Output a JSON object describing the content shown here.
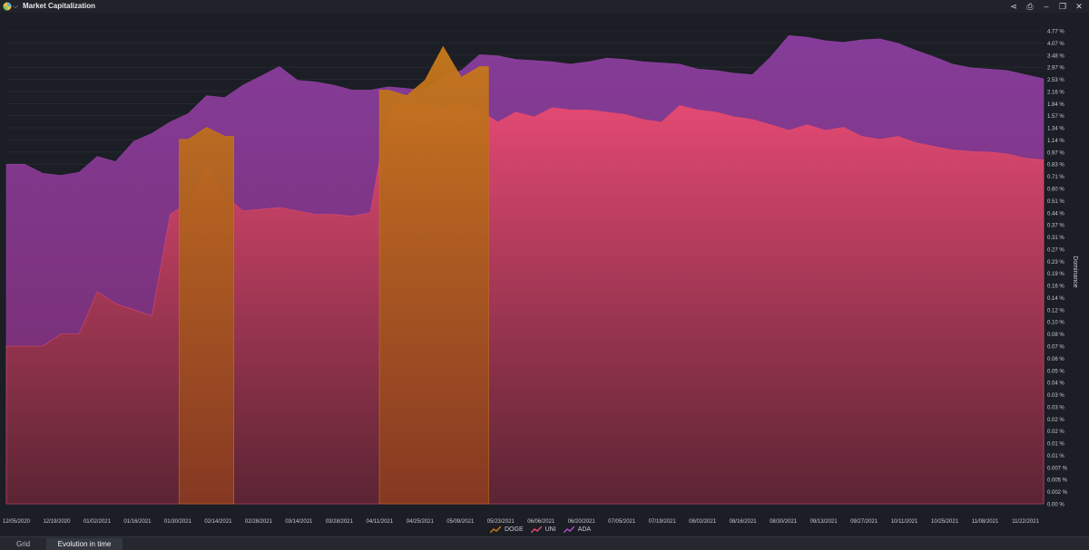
{
  "window": {
    "title": "Market Capitalization",
    "controls": [
      "share-icon",
      "export-icon",
      "minimize-icon",
      "restore-icon",
      "close-icon"
    ]
  },
  "tabs": [
    {
      "label": "Grid",
      "active": false
    },
    {
      "label": "Evolution in time",
      "active": true
    }
  ],
  "chart_data": {
    "type": "area",
    "title": "",
    "xlabel": "",
    "ylabel": "Dominance",
    "y_scale": "nonlinear",
    "y_ticks": [
      "4.77 %",
      "4.07 %",
      "3.48 %",
      "2.97 %",
      "2.53 %",
      "2.16 %",
      "1.84 %",
      "1.57 %",
      "1.34 %",
      "1.14 %",
      "0.97 %",
      "0.83 %",
      "0.71 %",
      "0.60 %",
      "0.51 %",
      "0.44 %",
      "0.37 %",
      "0.31 %",
      "0.27 %",
      "0.23 %",
      "0.19 %",
      "0.16 %",
      "0.14 %",
      "0.12 %",
      "0.10 %",
      "0.08 %",
      "0.07 %",
      "0.06 %",
      "0.05 %",
      "0.04 %",
      "0.03 %",
      "0.03 %",
      "0.02 %",
      "0.02 %",
      "0.01 %",
      "0.01 %",
      "0.007 %",
      "0.005 %",
      "0.002 %",
      "0.00 %"
    ],
    "x_ticks": [
      "12/05/2020",
      "12/19/2020",
      "01/02/2021",
      "01/16/2021",
      "01/30/2021",
      "02/14/2021",
      "02/28/2021",
      "03/14/2021",
      "03/28/2021",
      "04/11/2021",
      "04/25/2021",
      "05/09/2021",
      "05/23/2021",
      "06/06/2021",
      "06/20/2021",
      "07/05/2021",
      "07/19/2021",
      "08/02/2021",
      "08/16/2021",
      "08/30/2021",
      "09/13/2021",
      "09/27/2021",
      "10/11/2021",
      "10/25/2021",
      "11/08/2021",
      "11/22/2021"
    ],
    "legend_position": "bottom-center",
    "series": [
      {
        "name": "ADA",
        "color": "#8e3f9e",
        "values": [
          0.83,
          0.83,
          0.74,
          0.72,
          0.75,
          0.92,
          0.86,
          1.12,
          1.25,
          1.45,
          1.62,
          2.05,
          2.0,
          2.35,
          2.65,
          3.0,
          2.5,
          2.45,
          2.35,
          2.2,
          2.2,
          2.3,
          2.25,
          2.2,
          2.6,
          2.85,
          3.5,
          3.45,
          3.3,
          3.25,
          3.2,
          3.1,
          3.2,
          3.35,
          3.3,
          3.2,
          3.15,
          3.1,
          2.9,
          2.85,
          2.75,
          2.7,
          3.4,
          4.5,
          4.4,
          4.2,
          4.1,
          4.25,
          4.3,
          4.05,
          3.7,
          3.4,
          3.1,
          2.95,
          2.9,
          2.85,
          2.7,
          2.55
        ]
      },
      {
        "name": "UNI",
        "color": "#e0476d",
        "values": [
          0.07,
          0.07,
          0.07,
          0.08,
          0.08,
          0.15,
          0.13,
          0.12,
          0.11,
          0.43,
          0.5,
          0.8,
          0.55,
          0.45,
          0.46,
          0.47,
          0.45,
          0.43,
          0.43,
          0.42,
          0.44,
          1.7,
          1.9,
          1.8,
          1.75,
          1.85,
          1.7,
          1.45,
          1.65,
          1.55,
          1.75,
          1.7,
          1.7,
          1.65,
          1.6,
          1.5,
          1.45,
          1.8,
          1.7,
          1.65,
          1.55,
          1.5,
          1.4,
          1.3,
          1.4,
          1.3,
          1.35,
          1.2,
          1.15,
          1.2,
          1.1,
          1.05,
          1.0,
          0.98,
          0.97,
          0.95,
          0.9,
          0.88
        ]
      },
      {
        "name": "DOGE",
        "color": "#c5761a",
        "values": [
          0,
          0,
          0,
          0,
          0,
          0,
          0,
          0,
          0,
          0,
          1.15,
          1.35,
          1.2,
          0,
          0,
          0,
          0,
          0,
          0,
          0,
          0,
          2.2,
          2.05,
          2.5,
          3.9,
          2.6,
          3.0,
          0,
          0,
          0,
          0,
          0,
          0,
          0,
          0,
          0,
          0,
          0,
          0,
          0,
          0,
          0,
          0,
          0,
          0,
          0,
          0,
          0,
          0,
          0,
          0,
          0,
          0,
          0,
          0,
          0,
          0,
          0
        ]
      }
    ]
  }
}
